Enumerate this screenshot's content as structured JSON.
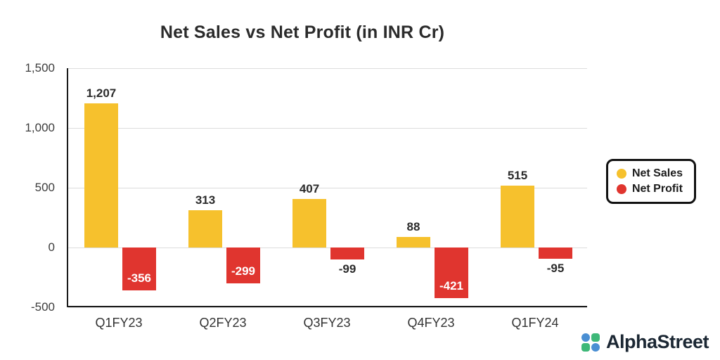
{
  "chart": {
    "title": "Net Sales vs Net Profit (in INR Cr)"
  },
  "chart_data": {
    "type": "bar",
    "categories": [
      "Q1FY23",
      "Q2FY23",
      "Q3FY23",
      "Q4FY23",
      "Q1FY24"
    ],
    "series": [
      {
        "name": "Net Sales",
        "color": "#F6C12D",
        "values": [
          1207,
          313,
          407,
          88,
          515
        ],
        "labels": [
          "1,207",
          "313",
          "407",
          "88",
          "515"
        ]
      },
      {
        "name": "Net Profit",
        "color": "#E0352F",
        "values": [
          -356,
          -299,
          -99,
          -421,
          -95
        ],
        "labels": [
          "-356",
          "-299",
          "-99",
          "-421",
          "-95"
        ]
      }
    ],
    "title": "Net Sales vs Net Profit (in INR Cr)",
    "xlabel": "",
    "ylabel": "",
    "ylim": [
      -500,
      1500
    ],
    "yticks": [
      1500,
      1000,
      500,
      0,
      -500
    ],
    "ytick_labels": [
      "1,500",
      "1,000",
      "500",
      "0",
      "-500"
    ],
    "grid": true,
    "legend_position": "right"
  },
  "legend": {
    "items": [
      {
        "label": "Net Sales",
        "color": "#F6C12D"
      },
      {
        "label": "Net Profit",
        "color": "#E0352F"
      }
    ]
  },
  "branding": {
    "name": "AlphaStreet",
    "icon_blue": "#4A8FD3",
    "icon_green": "#3EB878"
  }
}
